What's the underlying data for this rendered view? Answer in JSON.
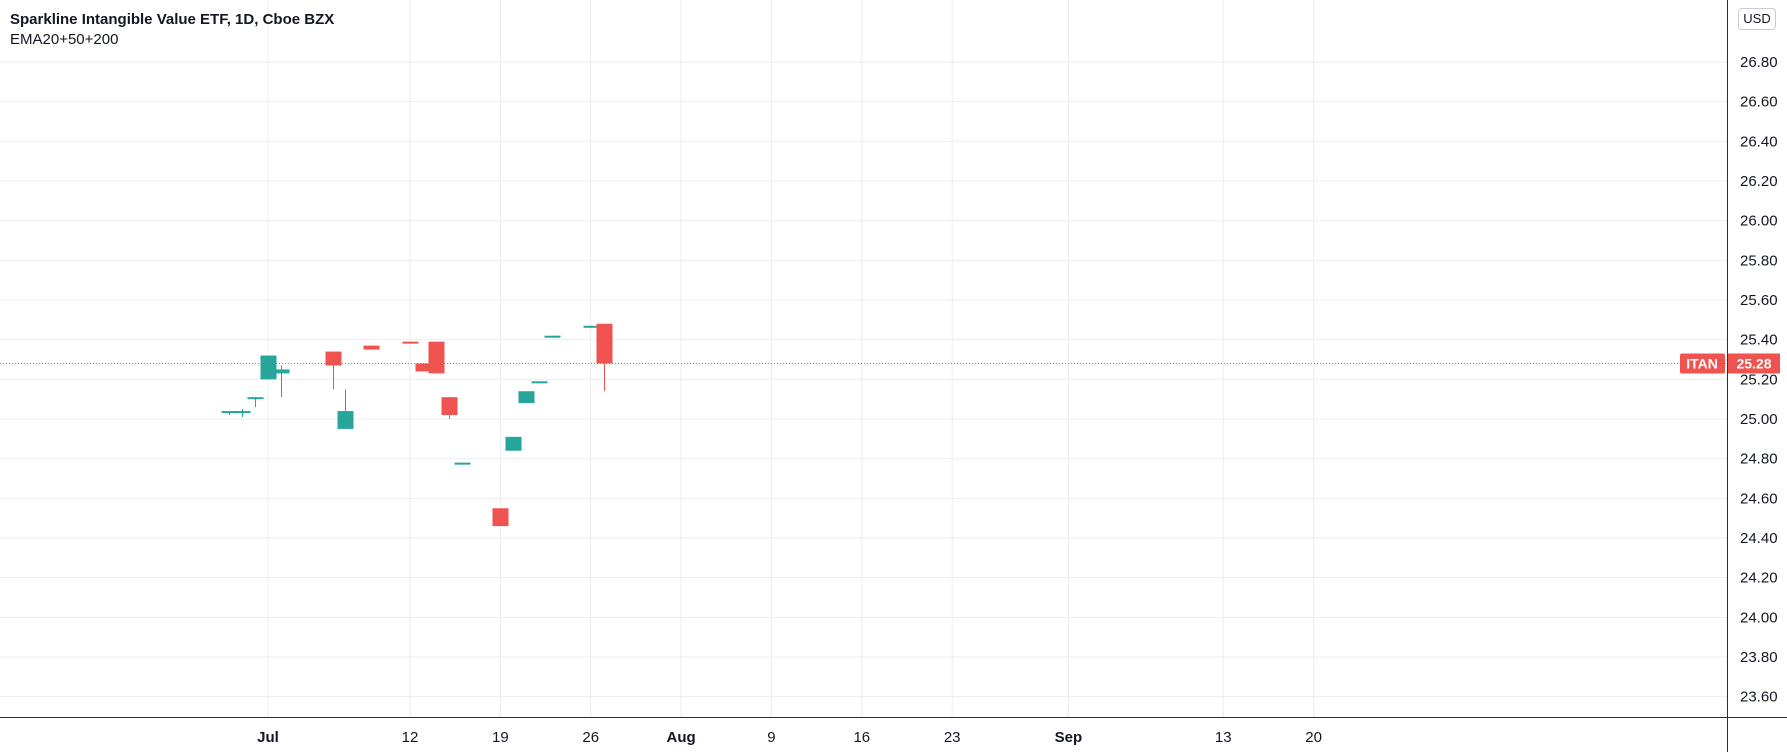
{
  "legend": {
    "title": "Sparkline Intangible Value ETF, 1D, Cboe BZX",
    "indicator": "EMA20+50+200"
  },
  "currency_label": "USD",
  "last_price": {
    "symbol": "ITAN",
    "value_text": "25.28",
    "value": 25.28
  },
  "colors": {
    "up": "#26a69a",
    "down": "#ef5350",
    "grid": "#e9edf3",
    "axis": "#2a2e39",
    "price_line": "#ef5350"
  },
  "chart_data": {
    "type": "candlestick",
    "title": "Sparkline Intangible Value ETF, 1D, Cboe BZX",
    "ylim": [
      23.5,
      27.0
    ],
    "y_ticks": [
      "23.60",
      "23.80",
      "24.00",
      "24.20",
      "24.40",
      "24.60",
      "24.80",
      "25.00",
      "25.20",
      "25.40",
      "25.60",
      "25.80",
      "26.00",
      "26.20",
      "26.40",
      "26.60",
      "26.80"
    ],
    "x_ticks": [
      {
        "label": "Jul",
        "date": "2021-07-01",
        "bold": true
      },
      {
        "label": "12",
        "date": "2021-07-12",
        "bold": false
      },
      {
        "label": "19",
        "date": "2021-07-19",
        "bold": false
      },
      {
        "label": "26",
        "date": "2021-07-26",
        "bold": false
      },
      {
        "label": "Aug",
        "date": "2021-08-02",
        "bold": true
      },
      {
        "label": "9",
        "date": "2021-08-09",
        "bold": false
      },
      {
        "label": "16",
        "date": "2021-08-16",
        "bold": false
      },
      {
        "label": "23",
        "date": "2021-08-23",
        "bold": false
      },
      {
        "label": "Sep",
        "date": "2021-09-01",
        "bold": true
      },
      {
        "label": "13",
        "date": "2021-09-13",
        "bold": false
      },
      {
        "label": "20",
        "date": "2021-09-20",
        "bold": false
      }
    ],
    "candles": [
      {
        "date": "2021-06-28",
        "open": 25.03,
        "high": 25.04,
        "low": 25.02,
        "close": 25.04
      },
      {
        "date": "2021-06-29",
        "open": 25.03,
        "high": 25.05,
        "low": 25.01,
        "close": 25.04
      },
      {
        "date": "2021-06-30",
        "open": 25.1,
        "high": 25.11,
        "low": 25.06,
        "close": 25.11
      },
      {
        "date": "2021-07-01",
        "open": 25.2,
        "high": 25.32,
        "low": 25.2,
        "close": 25.32
      },
      {
        "date": "2021-07-02",
        "open": 25.23,
        "high": 25.27,
        "low": 25.11,
        "close": 25.25
      },
      {
        "date": "2021-07-06",
        "open": 25.34,
        "high": 25.34,
        "low": 25.15,
        "close": 25.27
      },
      {
        "date": "2021-07-07",
        "open": 24.95,
        "high": 25.15,
        "low": 24.95,
        "close": 25.04
      },
      {
        "date": "2021-07-09",
        "open": 25.37,
        "high": 25.37,
        "low": 25.35,
        "close": 25.35
      },
      {
        "date": "2021-07-12",
        "open": 25.39,
        "high": 25.39,
        "low": 25.38,
        "close": 25.38
      },
      {
        "date": "2021-07-13",
        "open": 25.28,
        "high": 25.28,
        "low": 25.24,
        "close": 25.24
      },
      {
        "date": "2021-07-14",
        "open": 25.39,
        "high": 25.39,
        "low": 25.23,
        "close": 25.23
      },
      {
        "date": "2021-07-15",
        "open": 25.11,
        "high": 25.11,
        "low": 25.0,
        "close": 25.02
      },
      {
        "date": "2021-07-16",
        "open": 24.78,
        "high": 24.78,
        "low": 24.77,
        "close": 24.78
      },
      {
        "date": "2021-07-19",
        "open": 24.55,
        "high": 24.55,
        "low": 24.46,
        "close": 24.46
      },
      {
        "date": "2021-07-20",
        "open": 24.84,
        "high": 24.91,
        "low": 24.84,
        "close": 24.91
      },
      {
        "date": "2021-07-21",
        "open": 25.08,
        "high": 25.14,
        "low": 25.08,
        "close": 25.14
      },
      {
        "date": "2021-07-22",
        "open": 25.18,
        "high": 25.19,
        "low": 25.18,
        "close": 25.19
      },
      {
        "date": "2021-07-23",
        "open": 25.41,
        "high": 25.42,
        "low": 25.41,
        "close": 25.42
      },
      {
        "date": "2021-07-26",
        "open": 25.46,
        "high": 25.47,
        "low": 25.46,
        "close": 25.47
      },
      {
        "date": "2021-07-27",
        "open": 25.48,
        "high": 25.48,
        "low": 25.14,
        "close": 25.28
      }
    ]
  }
}
